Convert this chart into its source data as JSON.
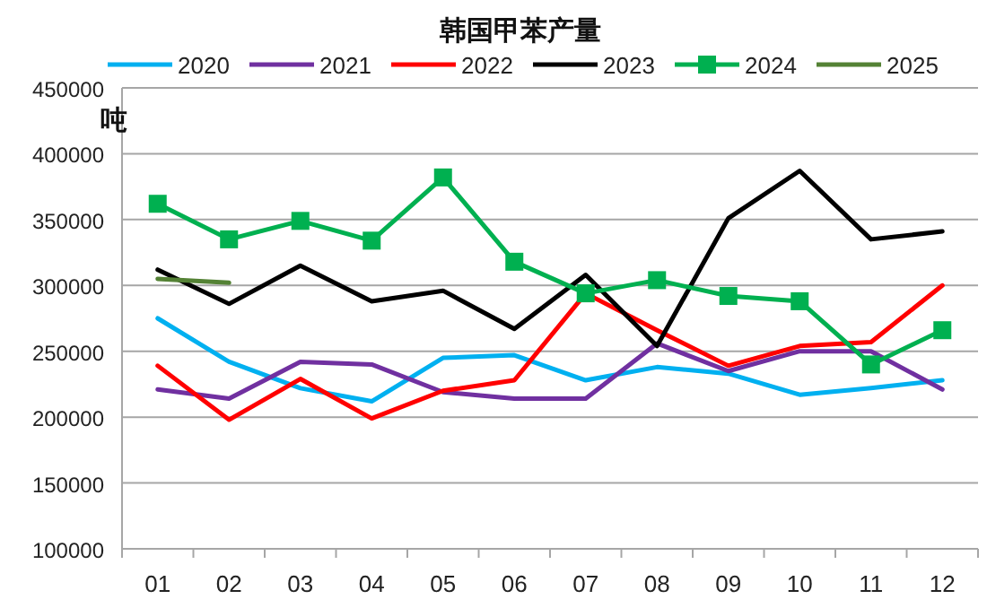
{
  "chart_data": {
    "type": "line",
    "title": "韩国甲苯产量",
    "ylabel": "吨",
    "categories": [
      "01",
      "02",
      "03",
      "04",
      "05",
      "06",
      "07",
      "08",
      "09",
      "10",
      "11",
      "12"
    ],
    "ylim": [
      100000,
      450000
    ],
    "yticks": [
      100000,
      150000,
      200000,
      250000,
      300000,
      350000,
      400000,
      450000
    ],
    "grid": "y",
    "legend": "top",
    "marker": "none",
    "line_style": "solid",
    "series": [
      {
        "name": "2020",
        "color": "#00b0f0",
        "values": [
          275000,
          242000,
          222000,
          212000,
          245000,
          247000,
          228000,
          238000,
          233000,
          217000,
          222000,
          228000
        ]
      },
      {
        "name": "2021",
        "color": "#7030a0",
        "values": [
          221000,
          214000,
          242000,
          240000,
          219000,
          214000,
          214000,
          256000,
          235000,
          250000,
          250000,
          221000
        ]
      },
      {
        "name": "2022",
        "color": "#ff0000",
        "values": [
          239000,
          198000,
          229000,
          199000,
          220000,
          228000,
          294000,
          266000,
          239000,
          254000,
          257000,
          300000
        ]
      },
      {
        "name": "2023",
        "color": "#000000",
        "values": [
          312000,
          286000,
          315000,
          288000,
          296000,
          267000,
          308000,
          254000,
          351000,
          387000,
          335000,
          341000
        ]
      },
      {
        "name": "2024",
        "color": "#00b050",
        "marker": "square",
        "values": [
          362000,
          335000,
          349000,
          334000,
          382000,
          318000,
          294000,
          304000,
          292000,
          288000,
          240000,
          266000
        ]
      },
      {
        "name": "2025",
        "color": "#548235",
        "values": [
          305000,
          302000,
          null,
          null,
          null,
          null,
          null,
          null,
          null,
          null,
          null,
          null
        ]
      }
    ]
  }
}
